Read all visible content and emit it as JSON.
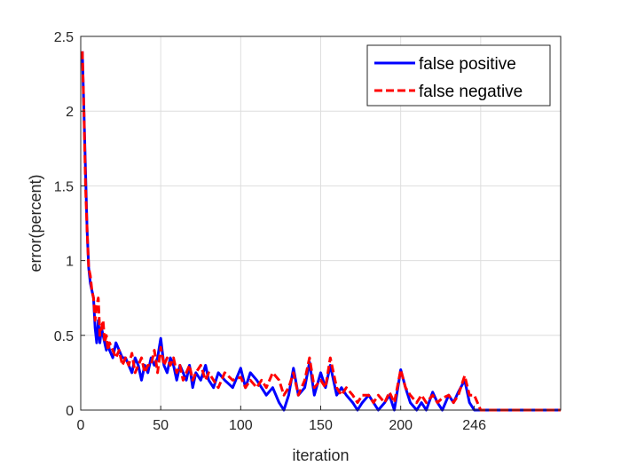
{
  "chart_data": {
    "type": "line",
    "title": "",
    "xlabel": "iteration",
    "ylabel": "error(percent)",
    "xlim": [
      0,
      300
    ],
    "ylim": [
      0,
      2.5
    ],
    "x_ticks": [
      0,
      50,
      100,
      150,
      200,
      246
    ],
    "x_tick_labels": [
      "0",
      "50",
      "100",
      "150",
      "200",
      "246"
    ],
    "y_ticks": [
      0,
      0.5,
      1,
      1.5,
      2,
      2.5
    ],
    "y_tick_labels": [
      "0",
      "0.5",
      "1",
      "1.5",
      "2",
      "2.5"
    ],
    "x_grid_values": [
      0,
      50,
      100,
      150,
      200,
      250,
      300
    ],
    "grid": true,
    "legend_position": "top-right",
    "series": [
      {
        "name": "false positive",
        "color": "#0000ff",
        "style": "solid",
        "x": [
          1,
          2,
          3,
          4,
          5,
          6,
          7,
          8,
          9,
          10,
          11,
          12,
          13,
          14,
          15,
          16,
          17,
          18,
          20,
          22,
          24,
          26,
          28,
          30,
          32,
          34,
          36,
          38,
          40,
          42,
          44,
          46,
          48,
          50,
          52,
          54,
          56,
          58,
          60,
          62,
          64,
          66,
          68,
          70,
          72,
          75,
          78,
          80,
          83,
          86,
          90,
          95,
          100,
          103,
          106,
          110,
          113,
          116,
          120,
          124,
          127,
          130,
          133,
          136,
          140,
          143,
          146,
          150,
          153,
          156,
          160,
          163,
          166,
          170,
          173,
          176,
          180,
          183,
          186,
          190,
          193,
          196,
          200,
          203,
          206,
          210,
          213,
          216,
          220,
          223,
          226,
          230,
          233,
          236,
          240,
          243,
          246,
          250,
          260,
          280,
          300
        ],
        "y": [
          2.4,
          2.0,
          1.6,
          1.2,
          0.95,
          0.85,
          0.8,
          0.75,
          0.55,
          0.45,
          0.6,
          0.45,
          0.55,
          0.5,
          0.45,
          0.4,
          0.45,
          0.4,
          0.35,
          0.45,
          0.4,
          0.35,
          0.35,
          0.3,
          0.25,
          0.35,
          0.3,
          0.2,
          0.3,
          0.25,
          0.35,
          0.3,
          0.35,
          0.48,
          0.3,
          0.25,
          0.35,
          0.3,
          0.2,
          0.3,
          0.25,
          0.2,
          0.3,
          0.15,
          0.25,
          0.2,
          0.3,
          0.2,
          0.15,
          0.25,
          0.2,
          0.15,
          0.28,
          0.15,
          0.25,
          0.2,
          0.15,
          0.1,
          0.15,
          0.05,
          0.0,
          0.1,
          0.28,
          0.1,
          0.15,
          0.32,
          0.1,
          0.25,
          0.15,
          0.3,
          0.1,
          0.15,
          0.1,
          0.05,
          0.0,
          0.05,
          0.1,
          0.05,
          0.0,
          0.05,
          0.1,
          0.0,
          0.27,
          0.15,
          0.05,
          0.0,
          0.05,
          0.0,
          0.12,
          0.05,
          0.0,
          0.1,
          0.05,
          0.12,
          0.2,
          0.05,
          0.0,
          0.0,
          0.0,
          0.0,
          0.0
        ]
      },
      {
        "name": "false negative",
        "color": "#ff0000",
        "style": "dashed",
        "x": [
          1,
          2,
          3,
          4,
          5,
          6,
          7,
          8,
          9,
          10,
          11,
          12,
          13,
          14,
          15,
          16,
          17,
          18,
          20,
          22,
          24,
          26,
          28,
          30,
          32,
          34,
          36,
          38,
          40,
          42,
          44,
          46,
          48,
          50,
          52,
          54,
          56,
          58,
          60,
          62,
          64,
          66,
          68,
          70,
          72,
          75,
          78,
          80,
          83,
          86,
          90,
          95,
          100,
          103,
          106,
          110,
          113,
          116,
          120,
          124,
          127,
          130,
          133,
          136,
          140,
          143,
          146,
          150,
          153,
          156,
          160,
          163,
          166,
          170,
          173,
          176,
          180,
          183,
          186,
          190,
          193,
          196,
          200,
          203,
          206,
          210,
          213,
          216,
          220,
          223,
          226,
          230,
          233,
          236,
          240,
          243,
          246,
          250,
          260,
          280,
          300
        ],
        "y": [
          2.4,
          2.0,
          1.5,
          1.2,
          0.95,
          0.9,
          0.8,
          0.75,
          0.6,
          0.7,
          0.75,
          0.5,
          0.55,
          0.6,
          0.45,
          0.5,
          0.4,
          0.45,
          0.4,
          0.35,
          0.4,
          0.3,
          0.35,
          0.3,
          0.38,
          0.25,
          0.3,
          0.35,
          0.25,
          0.3,
          0.3,
          0.4,
          0.25,
          0.42,
          0.3,
          0.35,
          0.3,
          0.35,
          0.25,
          0.3,
          0.2,
          0.25,
          0.3,
          0.2,
          0.25,
          0.3,
          0.2,
          0.25,
          0.2,
          0.15,
          0.25,
          0.2,
          0.22,
          0.15,
          0.2,
          0.15,
          0.2,
          0.15,
          0.25,
          0.2,
          0.1,
          0.15,
          0.25,
          0.1,
          0.2,
          0.35,
          0.15,
          0.2,
          0.15,
          0.35,
          0.15,
          0.1,
          0.15,
          0.1,
          0.05,
          0.1,
          0.1,
          0.05,
          0.1,
          0.05,
          0.12,
          0.05,
          0.27,
          0.15,
          0.1,
          0.05,
          0.1,
          0.05,
          0.1,
          0.05,
          0.08,
          0.1,
          0.05,
          0.1,
          0.23,
          0.1,
          0.1,
          0.0,
          0.0,
          0.0,
          0.0
        ]
      }
    ]
  }
}
